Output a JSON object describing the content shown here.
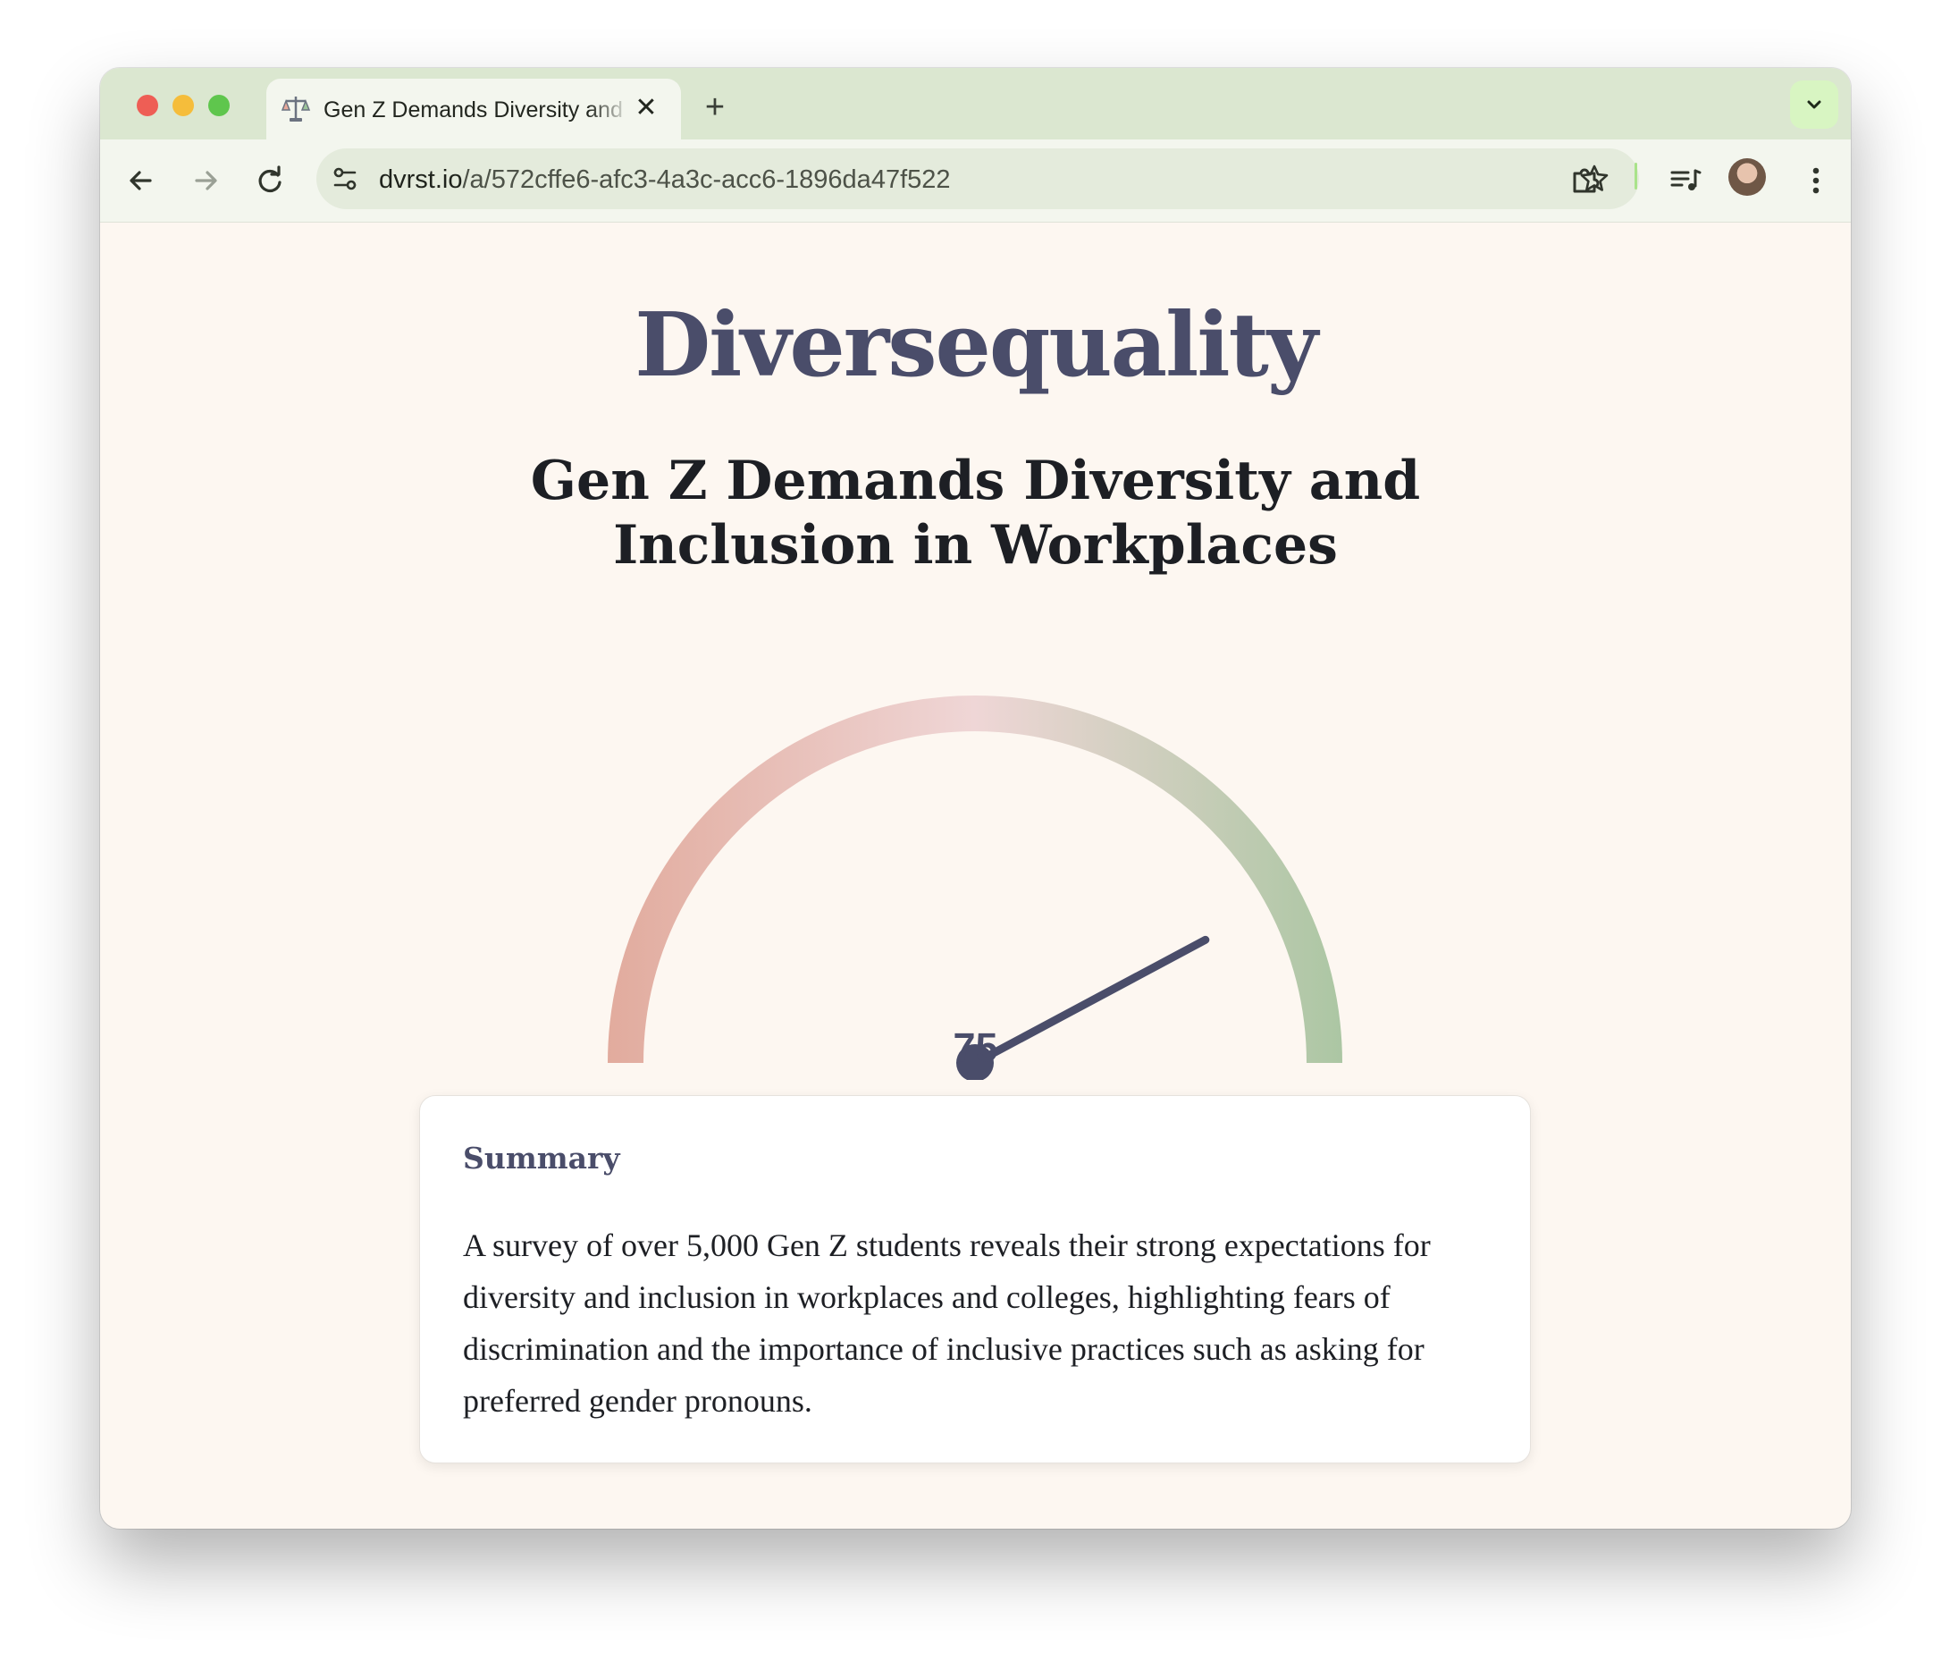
{
  "browser": {
    "tab": {
      "title": "Gen Z Demands Diversity and Inclusion in Workplaces",
      "close_icon": "✕",
      "favicon": "scales-favicon-icon"
    },
    "new_tab_icon": "+",
    "address": {
      "host": "dvrst.io",
      "path": "/a/572cffe6-afc3-4a3c-acc6-1896da47f522"
    },
    "accent": "#a9e38a"
  },
  "page": {
    "brand": "Diversequality",
    "headline": "Gen Z Demands Diversity and Inclusion in Workplaces",
    "gauge": {
      "value": 75,
      "min": 0,
      "max": 100,
      "value_label": "75",
      "colors": {
        "low": "#e1aa9c",
        "mid": "#efd6d6",
        "high": "#aac6a2",
        "needle": "#4a4d6a"
      }
    },
    "summary": {
      "title": "Summary",
      "body": "A survey of over 5,000 Gen Z students reveals their strong expectations for diversity and inclusion in workplaces and colleges, highlighting fears of discrimination and the importance of inclusive practices such as asking for preferred gender pronouns."
    }
  }
}
